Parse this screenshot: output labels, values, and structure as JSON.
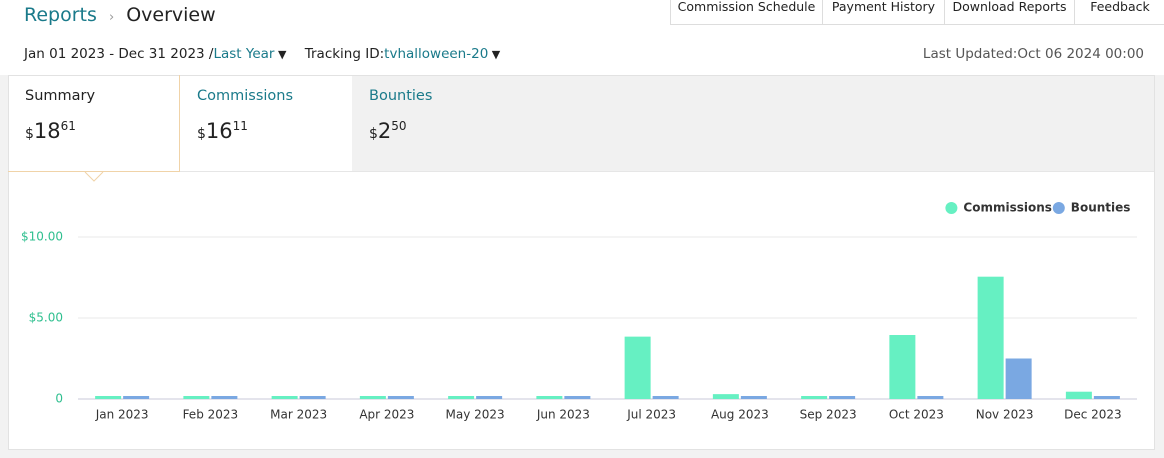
{
  "breadcrumb": {
    "parent": "Reports",
    "current": "Overview"
  },
  "tabs": [
    "Commission Schedule",
    "Payment History",
    "Download Reports",
    "Feedback"
  ],
  "filters": {
    "date_range": "Jan 01 2023 - Dec 31 2023 /",
    "period": "Last Year",
    "tracking_label": "Tracking ID:",
    "tracking_id": "tvhalloween-20",
    "last_updated": "Last Updated:Oct 06 2024 00:00"
  },
  "summary_cards": [
    {
      "label": "Summary",
      "currency": "$",
      "whole": "18",
      "cents": "61"
    },
    {
      "label": "Commissions",
      "currency": "$",
      "whole": "16",
      "cents": "11"
    },
    {
      "label": "Bounties",
      "currency": "$",
      "whole": "2",
      "cents": "50"
    }
  ],
  "chart_data": {
    "type": "bar",
    "categories": [
      "Jan 2023",
      "Feb 2023",
      "Mar 2023",
      "Apr 2023",
      "May 2023",
      "Jun 2023",
      "Jul 2023",
      "Aug 2023",
      "Sep 2023",
      "Oct 2023",
      "Nov 2023",
      "Dec 2023"
    ],
    "series": [
      {
        "name": "Commissions",
        "color": "#66f0c2",
        "values": [
          0,
          0,
          0,
          0,
          0,
          0,
          3.85,
          0.3,
          0,
          3.95,
          7.55,
          0.45
        ]
      },
      {
        "name": "Bounties",
        "color": "#7aa8e2",
        "values": [
          0,
          0,
          0,
          0,
          0,
          0,
          0,
          0,
          0,
          0,
          2.5,
          0
        ]
      }
    ],
    "ylim": [
      0,
      10
    ],
    "yticks": [
      0,
      {
        "value": 5,
        "label": "$5.00"
      },
      {
        "value": 10,
        "label": "$10.00"
      }
    ],
    "grid": true,
    "legend": "top-right"
  }
}
